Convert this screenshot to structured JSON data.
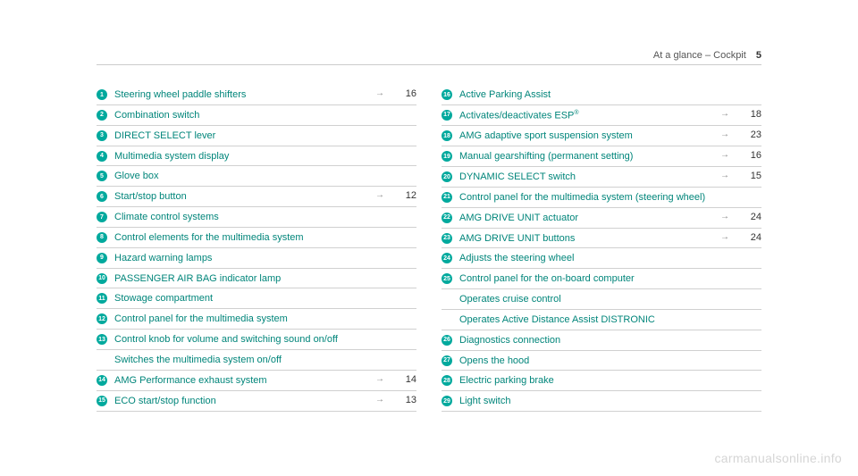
{
  "header": {
    "title": "At a glance – Cockpit",
    "page_number": "5"
  },
  "colors": {
    "accent": "#00a99d",
    "link": "#00857a",
    "text": "#333333",
    "rule": "#d0d0d0"
  },
  "watermark": "carmanualsonline.info",
  "columns": [
    {
      "items": [
        {
          "num": "1",
          "label": "Steering wheel paddle shifters",
          "page": "16"
        },
        {
          "num": "2",
          "label": "Combination switch"
        },
        {
          "num": "3",
          "label": "DIRECT SELECT lever"
        },
        {
          "num": "4",
          "label": "Multimedia system display"
        },
        {
          "num": "5",
          "label": "Glove box"
        },
        {
          "num": "6",
          "label": "Start/stop button",
          "page": "12"
        },
        {
          "num": "7",
          "label": "Climate control systems"
        },
        {
          "num": "8",
          "label": "Control elements for the multimedia system"
        },
        {
          "num": "9",
          "label": "Hazard warning lamps"
        },
        {
          "num": "10",
          "label": "PASSENGER AIR BAG indicator lamp"
        },
        {
          "num": "11",
          "label": "Stowage compartment"
        },
        {
          "num": "12",
          "label": "Control panel for the multimedia system"
        },
        {
          "num": "13",
          "label": "Control knob for volume and switching sound on/off"
        },
        {
          "num": "",
          "label": "Switches the multimedia system on/off"
        },
        {
          "num": "14",
          "label": "AMG Performance exhaust system",
          "page": "14"
        },
        {
          "num": "15",
          "label": "ECO start/stop function",
          "page": "13"
        }
      ]
    },
    {
      "items": [
        {
          "num": "16",
          "label": "Active Parking Assist"
        },
        {
          "num": "17",
          "label_html": "Activates/deactivates ESP<sup>®</sup>",
          "page": "18"
        },
        {
          "num": "18",
          "label": "AMG adaptive sport suspension system",
          "page": "23"
        },
        {
          "num": "19",
          "label": "Manual gearshifting (permanent setting)",
          "page": "16"
        },
        {
          "num": "20",
          "label": "DYNAMIC SELECT switch",
          "page": "15"
        },
        {
          "num": "21",
          "label": "Control panel for the multimedia system (steering wheel)"
        },
        {
          "num": "22",
          "label": "AMG DRIVE UNIT actuator",
          "page": "24"
        },
        {
          "num": "23",
          "label": "AMG DRIVE UNIT buttons",
          "page": "24"
        },
        {
          "num": "24",
          "label": "Adjusts the steering wheel"
        },
        {
          "num": "25",
          "label": "Control panel for the on-board computer"
        },
        {
          "num": "",
          "label": "Operates cruise control"
        },
        {
          "num": "",
          "label": "Operates Active Distance Assist DISTRONIC"
        },
        {
          "num": "26",
          "label": "Diagnostics connection"
        },
        {
          "num": "27",
          "label": "Opens the hood"
        },
        {
          "num": "28",
          "label": "Electric parking brake"
        },
        {
          "num": "29",
          "label": "Light switch"
        }
      ]
    }
  ]
}
